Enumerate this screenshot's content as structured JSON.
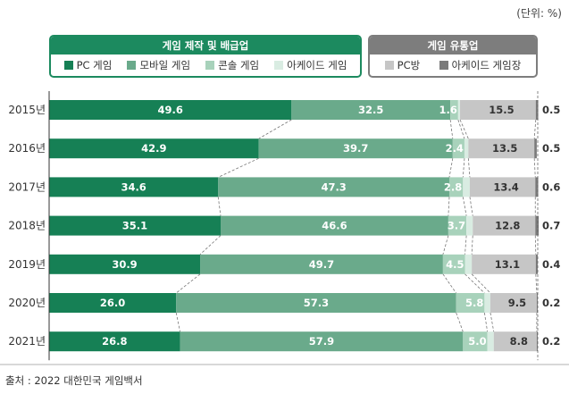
{
  "unit_label": "(단위: %)",
  "source": "출처 : 2022 대한민국 게임백서",
  "groups": [
    {
      "title": "게임 제작 및 배급업",
      "color": "#1c8a5f",
      "items": [
        {
          "label": "PC 게임",
          "color": "#168055"
        },
        {
          "label": "모바일 게임",
          "color": "#6aaa8b"
        },
        {
          "label": "콘솔 게임",
          "color": "#a8d2bb"
        },
        {
          "label": "아케이드 게임",
          "color": "#d9ece2"
        }
      ]
    },
    {
      "title": "게임 유통업",
      "color": "#7d7d7d",
      "items": [
        {
          "label": "PC방",
          "color": "#c6c6c6"
        },
        {
          "label": "아케이드 게임장",
          "color": "#7a7a7a"
        }
      ]
    }
  ],
  "chart_data": {
    "type": "bar",
    "orientation": "horizontal",
    "stacked": true,
    "categories": [
      "2015년",
      "2016년",
      "2017년",
      "2018년",
      "2019년",
      "2020년",
      "2021년"
    ],
    "series": [
      {
        "name": "PC 게임",
        "color": "#168055",
        "values": [
          49.6,
          42.9,
          34.6,
          35.1,
          30.9,
          26.0,
          26.8
        ]
      },
      {
        "name": "모바일 게임",
        "color": "#6aaa8b",
        "values": [
          32.5,
          39.7,
          47.3,
          46.6,
          49.7,
          57.3,
          57.9
        ]
      },
      {
        "name": "콘솔 게임",
        "color": "#a8d2bb",
        "values": [
          1.6,
          2.4,
          2.8,
          3.7,
          4.5,
          5.8,
          5.0
        ]
      },
      {
        "name": "아케이드 게임",
        "color": "#d9ece2",
        "values": [
          0.4,
          0.8,
          1.4,
          1.3,
          1.4,
          1.2,
          1.3
        ]
      },
      {
        "name": "PC방",
        "color": "#c6c6c6",
        "values": [
          15.5,
          13.5,
          13.4,
          12.8,
          13.1,
          9.5,
          8.8
        ]
      },
      {
        "name": "아케이드 게임장",
        "color": "#7a7a7a",
        "values": [
          0.5,
          0.5,
          0.6,
          0.7,
          0.4,
          0.2,
          0.2
        ]
      }
    ],
    "value_labels": [
      [
        "49.6",
        "32.5",
        "1.6",
        "0.4",
        "15.5",
        "0.5"
      ],
      [
        "42.9",
        "39.7",
        "2.4",
        "0.8",
        "13.5",
        "0.5"
      ],
      [
        "34.6",
        "47.3",
        "2.8",
        "1.4",
        "13.4",
        "0.6"
      ],
      [
        "35.1",
        "46.6",
        "3.7",
        "1.3",
        "12.8",
        "0.7"
      ],
      [
        "30.9",
        "49.7",
        "4.5",
        "1.4",
        "13.1",
        "0.4"
      ],
      [
        "26.0",
        "57.3",
        "5.8",
        "1.2",
        "9.5",
        "0.2"
      ],
      [
        "26.8",
        "57.9",
        "5.0",
        "1.3",
        "8.8",
        "0.2"
      ]
    ],
    "xlim": [
      0,
      100
    ]
  }
}
